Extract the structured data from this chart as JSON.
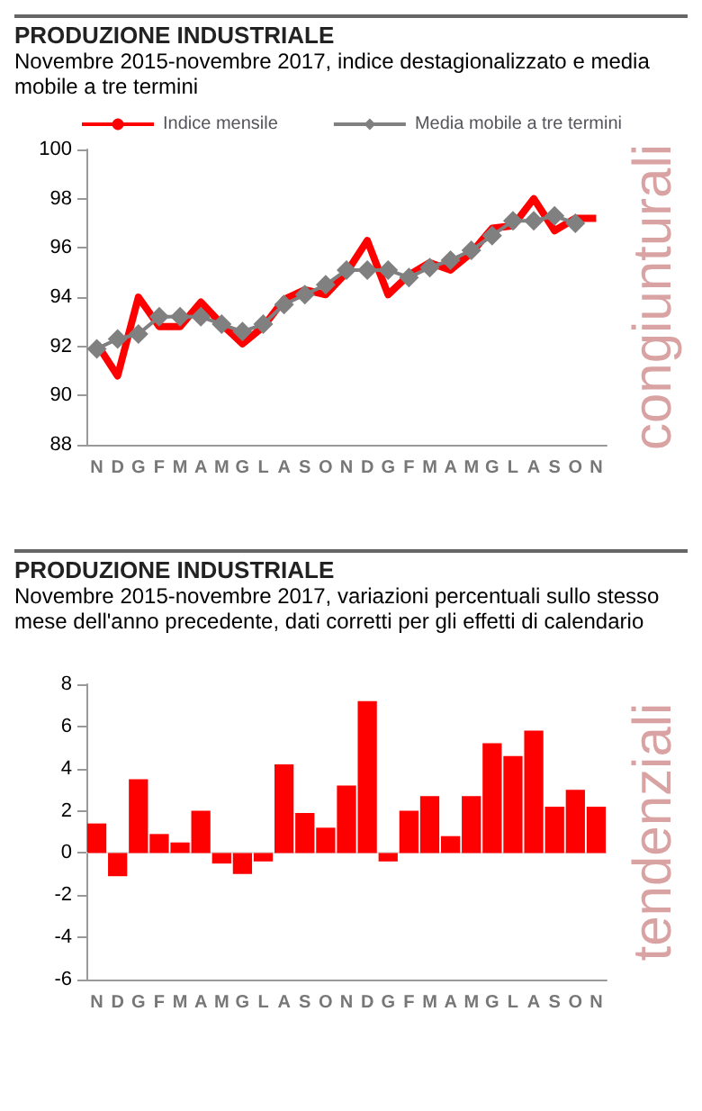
{
  "chart_data": [
    {
      "type": "line",
      "title": "PRODUZIONE INDUSTRIALE",
      "subtitle": "Novembre 2015-novembre 2017, indice destagionalizzato e media mobile a tre termini",
      "annotations": [
        "congiunturali"
      ],
      "categories": [
        "N",
        "D",
        "G",
        "F",
        "M",
        "A",
        "M",
        "G",
        "L",
        "A",
        "S",
        "O",
        "N",
        "D",
        "G",
        "F",
        "M",
        "A",
        "M",
        "G",
        "L",
        "A",
        "S",
        "O",
        "N"
      ],
      "series": [
        {
          "name": "Indice mensile",
          "color": "#ff0000",
          "marker": "none",
          "values": [
            92.1,
            90.8,
            94.0,
            92.8,
            92.8,
            93.8,
            92.9,
            92.1,
            92.8,
            93.9,
            94.3,
            94.1,
            95.0,
            96.3,
            94.1,
            94.9,
            95.4,
            95.1,
            95.8,
            96.8,
            96.9,
            98.0,
            96.7,
            97.2,
            97.2
          ]
        },
        {
          "name": "Media mobile a tre termini",
          "color": "#808080",
          "marker": "diamond",
          "values": [
            91.9,
            92.3,
            92.5,
            93.2,
            93.2,
            93.2,
            92.9,
            92.6,
            92.9,
            93.7,
            94.1,
            94.5,
            95.1,
            95.1,
            95.1,
            94.8,
            95.2,
            95.5,
            95.9,
            96.5,
            97.1,
            97.1,
            97.3,
            97.0,
            null
          ]
        }
      ],
      "ylim": [
        88,
        100
      ],
      "yticks": [
        88,
        90,
        92,
        94,
        96,
        98,
        100
      ],
      "grid": false,
      "legend": "top"
    },
    {
      "type": "bar",
      "title": "PRODUZIONE INDUSTRIALE",
      "subtitle": "Novembre 2015-novembre 2017, variazioni percentuali sullo stesso mese dell'anno precedente, dati corretti per gli effetti di calendario",
      "annotations": [
        "tendenziali"
      ],
      "categories": [
        "N",
        "D",
        "G",
        "F",
        "M",
        "A",
        "M",
        "G",
        "L",
        "A",
        "S",
        "O",
        "N",
        "D",
        "G",
        "F",
        "M",
        "A",
        "M",
        "G",
        "L",
        "A",
        "S",
        "O",
        "N"
      ],
      "values": [
        1.4,
        -1.1,
        3.5,
        0.9,
        0.5,
        2.0,
        -0.5,
        -1.0,
        -0.4,
        4.2,
        1.9,
        1.2,
        3.2,
        7.2,
        -0.4,
        2.0,
        2.7,
        0.8,
        2.7,
        5.2,
        4.6,
        5.8,
        2.2,
        3.0,
        2.2
      ],
      "color": "#ff0000",
      "ref_lines": [
        {
          "axis": "y",
          "value": 0,
          "color": "#e0e0e0"
        }
      ],
      "ylim": [
        -6,
        8
      ],
      "yticks": [
        -6,
        -4,
        -2,
        0,
        2,
        4,
        6,
        8
      ],
      "grid": false,
      "legend": false
    }
  ]
}
